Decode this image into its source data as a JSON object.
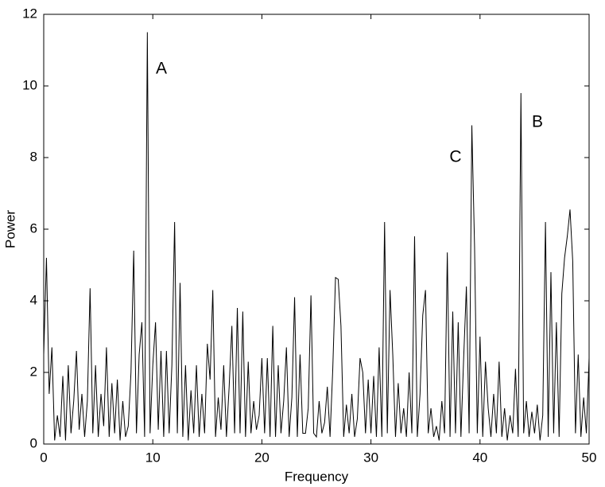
{
  "chart_data": {
    "type": "line",
    "xlabel": "Frequency",
    "ylabel": "Power",
    "xlim": [
      0,
      50
    ],
    "ylim": [
      0,
      12
    ],
    "xticks": [
      0,
      10,
      20,
      30,
      40,
      50
    ],
    "yticks": [
      0,
      2,
      4,
      6,
      8,
      10,
      12
    ],
    "color": "#000000",
    "annotations": [
      "A",
      "C",
      "B"
    ],
    "x": [
      0,
      0.25,
      0.5,
      0.75,
      1,
      1.25,
      1.5,
      1.75,
      2,
      2.25,
      2.5,
      2.75,
      3,
      3.25,
      3.5,
      3.75,
      4,
      4.25,
      4.5,
      4.75,
      5,
      5.25,
      5.5,
      5.75,
      6,
      6.25,
      6.5,
      6.75,
      7,
      7.25,
      7.5,
      7.75,
      8,
      8.25,
      8.5,
      8.75,
      9,
      9.25,
      9.5,
      9.75,
      10,
      10.25,
      10.5,
      10.75,
      11,
      11.25,
      11.5,
      11.75,
      12,
      12.25,
      12.5,
      12.75,
      13,
      13.25,
      13.5,
      13.75,
      14,
      14.25,
      14.5,
      14.75,
      15,
      15.25,
      15.5,
      15.75,
      16,
      16.25,
      16.5,
      16.75,
      17,
      17.25,
      17.5,
      17.75,
      18,
      18.25,
      18.5,
      18.75,
      19,
      19.25,
      19.5,
      19.75,
      20,
      20.25,
      20.5,
      20.75,
      21,
      21.25,
      21.5,
      21.75,
      22,
      22.25,
      22.5,
      22.75,
      23,
      23.25,
      23.5,
      23.75,
      24,
      24.25,
      24.5,
      24.75,
      25,
      25.25,
      25.5,
      25.75,
      26,
      26.25,
      26.5,
      26.75,
      27,
      27.25,
      27.5,
      27.75,
      28,
      28.25,
      28.5,
      28.75,
      29,
      29.25,
      29.5,
      29.75,
      30,
      30.25,
      30.5,
      30.75,
      31,
      31.25,
      31.5,
      31.75,
      32,
      32.25,
      32.5,
      32.75,
      33,
      33.25,
      33.5,
      33.75,
      34,
      34.25,
      34.5,
      34.75,
      35,
      35.25,
      35.5,
      35.75,
      36,
      36.25,
      36.5,
      36.75,
      37,
      37.25,
      37.5,
      37.75,
      38,
      38.25,
      38.5,
      38.75,
      39,
      39.25,
      39.5,
      39.75,
      40,
      40.25,
      40.5,
      40.75,
      41,
      41.25,
      41.5,
      41.75,
      42,
      42.25,
      42.5,
      42.75,
      43,
      43.25,
      43.5,
      43.75,
      44,
      44.25,
      44.5,
      44.75,
      45,
      45.25,
      45.5,
      45.75,
      46,
      46.25,
      46.5,
      46.75,
      47,
      47.25,
      47.5,
      47.75,
      48,
      48.25,
      48.5,
      48.75,
      49,
      49.25,
      49.5,
      49.75,
      50
    ],
    "values": [
      2.5,
      5.2,
      1.4,
      2.7,
      0.1,
      0.8,
      0.2,
      1.9,
      0.1,
      2.2,
      0.3,
      1.2,
      2.6,
      0.4,
      1.4,
      0.2,
      1.2,
      4.35,
      0.3,
      2.2,
      0.2,
      1.4,
      0.5,
      2.7,
      0.2,
      1.7,
      0.3,
      1.8,
      0.1,
      1.2,
      0.2,
      0.5,
      2.0,
      5.4,
      0.3,
      2.5,
      3.4,
      0.2,
      11.5,
      0.3,
      2.2,
      3.4,
      0.4,
      2.6,
      0.2,
      2.6,
      0.3,
      2.2,
      6.2,
      0.3,
      4.5,
      0.2,
      2.2,
      0.1,
      1.5,
      0.3,
      2.2,
      0.2,
      1.4,
      0.3,
      2.8,
      1.8,
      4.3,
      0.2,
      1.3,
      0.4,
      2.2,
      0.2,
      1.6,
      3.3,
      0.3,
      3.8,
      0.3,
      3.7,
      0.2,
      2.3,
      0.3,
      1.2,
      0.4,
      0.8,
      2.4,
      0.3,
      2.4,
      0.2,
      3.3,
      0.2,
      2.2,
      0.3,
      1.2,
      2.7,
      0.2,
      1.3,
      4.1,
      0.2,
      2.5,
      0.3,
      0.3,
      1.0,
      4.15,
      0.3,
      0.2,
      1.2,
      0.3,
      0.6,
      1.6,
      0.2,
      2.1,
      4.65,
      4.6,
      3.3,
      0.2,
      1.1,
      0.3,
      1.4,
      0.2,
      0.7,
      2.4,
      2.0,
      0.3,
      1.8,
      0.3,
      1.9,
      0.2,
      2.7,
      0.2,
      6.2,
      0.3,
      4.3,
      2.5,
      0.2,
      1.7,
      0.3,
      1.0,
      0.2,
      2.0,
      0.3,
      5.8,
      0.2,
      1.4,
      3.6,
      4.3,
      0.3,
      1.0,
      0.2,
      0.5,
      0.1,
      1.2,
      0.3,
      5.35,
      0.2,
      3.7,
      0.3,
      3.4,
      0.2,
      2.4,
      4.4,
      0.3,
      8.9,
      5.5,
      0.3,
      3.0,
      0.2,
      2.3,
      1.0,
      0.2,
      1.4,
      0.3,
      2.3,
      0.2,
      1.0,
      0.1,
      0.8,
      0.3,
      2.1,
      0.2,
      9.8,
      0.3,
      1.2,
      0.2,
      0.9,
      0.3,
      1.1,
      0.1,
      0.8,
      6.2,
      0.2,
      4.8,
      0.3,
      3.4,
      0.2,
      4.2,
      5.2,
      5.8,
      6.55,
      5.1,
      0.3,
      2.5,
      0.2,
      1.3,
      0.3,
      2.4
    ]
  }
}
